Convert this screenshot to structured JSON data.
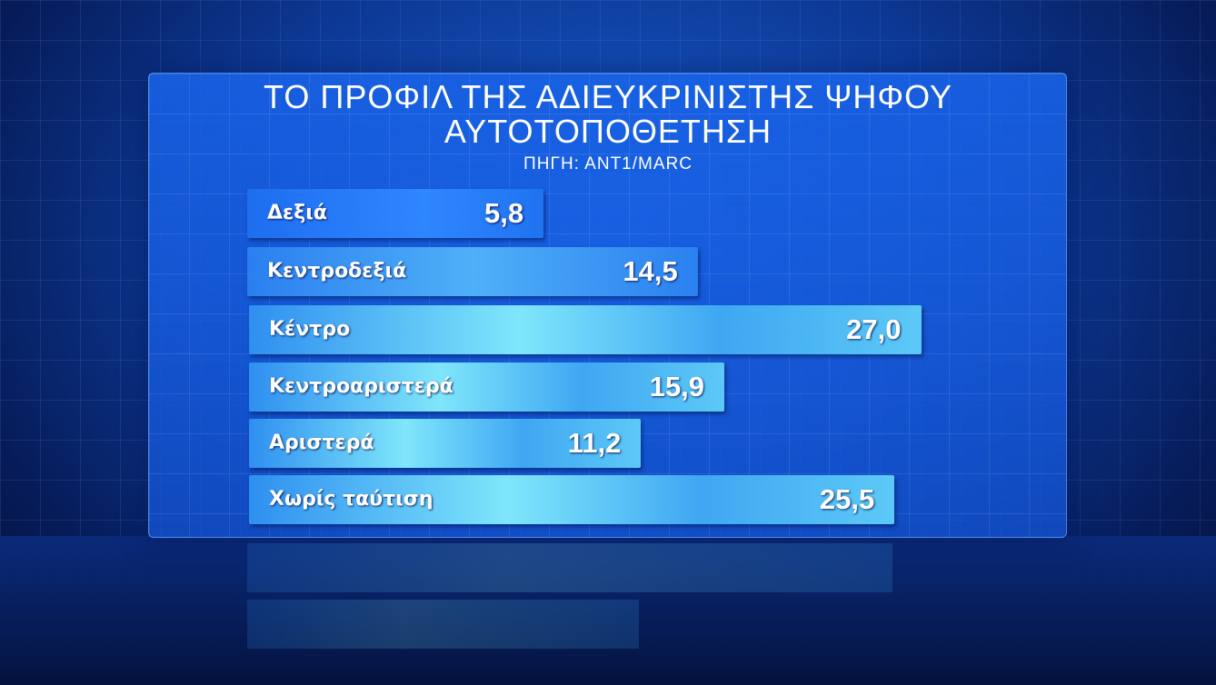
{
  "header": {
    "title_line1": "ΤΟ ΠΡΟΦΙΛ ΤΗΣ ΑΔΙΕΥΚΡΙΝΙΣΤΗΣ ΨΗΦΟΥ",
    "title_line2": "ΑΥΤΟΤΟΠΟΘΕΤΗΣΗ",
    "source": "ΠΗΓΗ: ΑΝΤ1/MARC"
  },
  "chart_data": {
    "type": "bar",
    "orientation": "horizontal",
    "title": "ΤΟ ΠΡΟΦΙΛ ΤΗΣ ΑΔΙΕΥΚΡΙΝΙΣΤΗΣ ΨΗΦΟΥ ΑΥΤΟΤΟΠΟΘΕΤΗΣΗ",
    "subtitle": "ΠΗΓΗ: ΑΝΤ1/MARC",
    "categories": [
      "Δεξιά",
      "Κεντροδεξιά",
      "Κέντρο",
      "Κεντροαριστερά",
      "Αριστερά",
      "Χωρίς ταύτιση"
    ],
    "values": [
      5.8,
      14.5,
      27.0,
      15.9,
      11.2,
      25.5
    ],
    "value_labels": [
      "5,8",
      "14,5",
      "27,0",
      "15,9",
      "11,2",
      "25,5"
    ],
    "grid": false,
    "colors": {
      "bar_dark": "#1e6ef0",
      "bar_light": "#7fe6fb",
      "background": "#0d3a98"
    }
  }
}
